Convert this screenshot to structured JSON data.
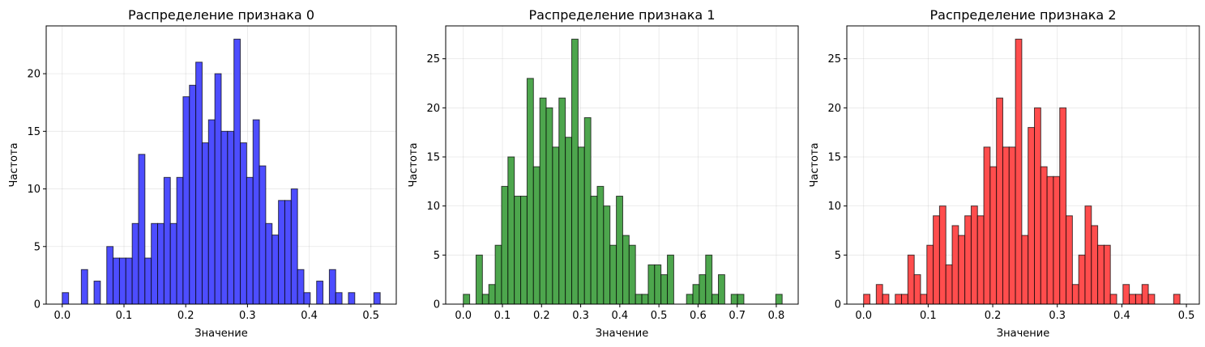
{
  "chart_data": [
    {
      "type": "bar",
      "title": "Распределение признака 0",
      "xlabel": "Значение",
      "ylabel": "Частота",
      "bins": 50,
      "bin_range": [
        0.0,
        0.515
      ],
      "values": [
        1,
        0,
        0,
        3,
        0,
        2,
        0,
        5,
        4,
        4,
        4,
        7,
        13,
        4,
        7,
        7,
        11,
        7,
        11,
        18,
        19,
        21,
        14,
        16,
        20,
        15,
        15,
        23,
        14,
        11,
        16,
        12,
        7,
        6,
        9,
        9,
        10,
        3,
        1,
        0,
        2,
        0,
        3,
        1,
        0,
        1,
        0,
        0,
        0,
        1
      ],
      "xlim": [
        -0.026,
        0.541
      ],
      "ylim": [
        0,
        24.15
      ],
      "xticks": [
        "0.0",
        "0.1",
        "0.2",
        "0.3",
        "0.4",
        "0.5"
      ],
      "yticks": [
        "0",
        "5",
        "10",
        "15",
        "20"
      ],
      "color": "#4d4dff",
      "grid": true
    },
    {
      "type": "bar",
      "title": "Распределение признака 1",
      "xlabel": "Значение",
      "ylabel": "Частота",
      "bins": 50,
      "bin_range": [
        0.0,
        0.815
      ],
      "values": [
        1,
        0,
        5,
        1,
        2,
        6,
        12,
        15,
        11,
        11,
        23,
        14,
        21,
        20,
        16,
        21,
        17,
        27,
        16,
        19,
        11,
        12,
        10,
        6,
        11,
        7,
        6,
        1,
        1,
        4,
        4,
        3,
        5,
        0,
        0,
        1,
        2,
        3,
        5,
        1,
        3,
        0,
        1,
        1,
        0,
        0,
        0,
        0,
        0,
        1
      ],
      "xlim": [
        -0.045,
        0.856
      ],
      "ylim": [
        0,
        28.35
      ],
      "xticks": [
        "0.0",
        "0.1",
        "0.2",
        "0.3",
        "0.4",
        "0.5",
        "0.6",
        "0.7",
        "0.8"
      ],
      "yticks": [
        "0",
        "5",
        "10",
        "15",
        "20",
        "25"
      ],
      "color": "#4da64d",
      "grid": true
    },
    {
      "type": "bar",
      "title": "Распределение признака 2",
      "xlabel": "Значение",
      "ylabel": "Частота",
      "bins": 50,
      "bin_range": [
        0.0,
        0.49
      ],
      "values": [
        1,
        0,
        2,
        1,
        0,
        1,
        1,
        5,
        3,
        1,
        6,
        9,
        10,
        4,
        8,
        7,
        9,
        10,
        9,
        16,
        14,
        21,
        16,
        16,
        27,
        7,
        18,
        20,
        14,
        13,
        13,
        20,
        9,
        2,
        5,
        10,
        8,
        6,
        6,
        1,
        0,
        2,
        1,
        1,
        2,
        1,
        0,
        0,
        0,
        1
      ],
      "xlim": [
        -0.026,
        0.52
      ],
      "ylim": [
        0,
        28.35
      ],
      "xticks": [
        "0.0",
        "0.1",
        "0.2",
        "0.3",
        "0.4",
        "0.5"
      ],
      "yticks": [
        "0",
        "5",
        "10",
        "15",
        "20",
        "25"
      ],
      "color": "#ff4d4d",
      "grid": true
    }
  ]
}
